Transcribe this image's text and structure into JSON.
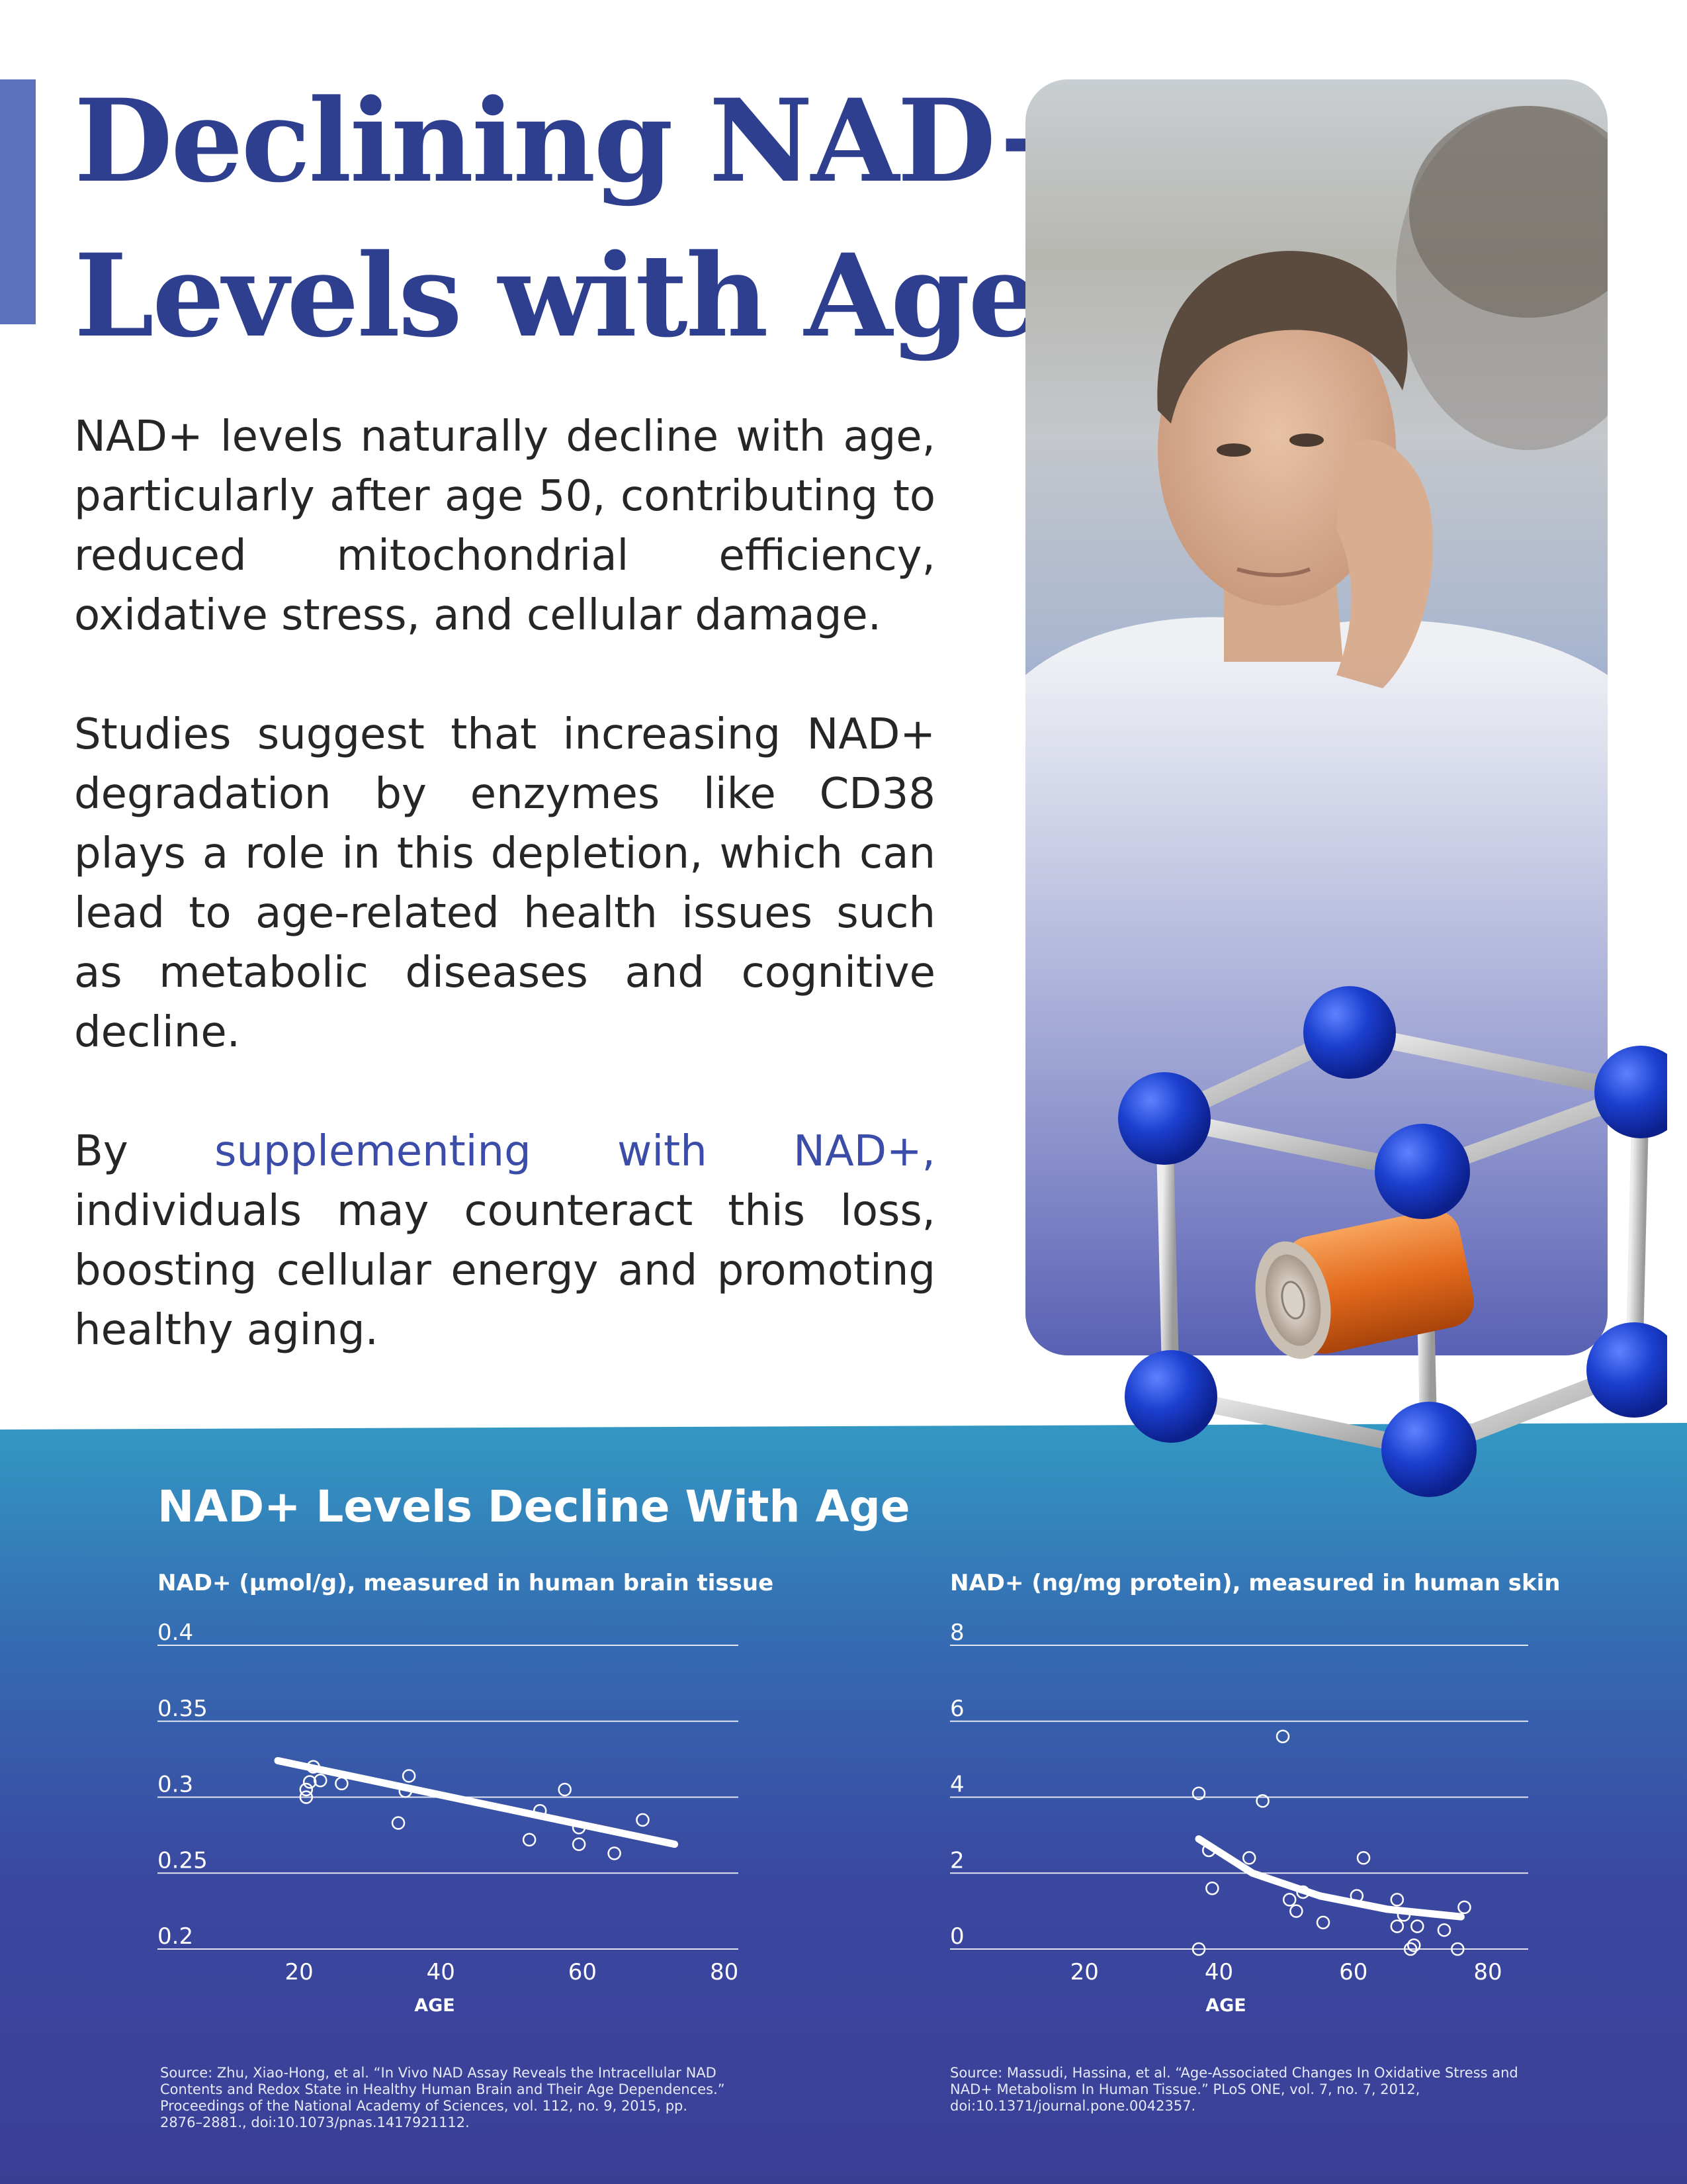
{
  "headline": {
    "line1": "Declining NAD+",
    "line2": "Levels with Age"
  },
  "body": {
    "para1": "NAD+ levels naturally decline with age, particularly after age 50, contributing to reduced mitochondrial efficiency, oxidative stress, and cellular damage.",
    "para2": "Studies suggest that increasing NAD+ degradation by enzymes like CD38 plays a role in this depletion, which can lead to age-related health issues such as metabolic diseases and cognitive decline.",
    "para3_highlight": "supplementing with NAD+,",
    "para3_pre": "By",
    "para3_post": "individuals may counteract this loss, boosting cellular energy and promoting healthy aging."
  },
  "colors": {
    "title": "#2e3f8f",
    "accent_bar": "#5c70bd",
    "highlight": "#3b4da8",
    "band_top": "#3398c4",
    "band_bottom": "#3a3f96",
    "molecule_atom": "#1b3fcf",
    "battery": "#e36a1c"
  },
  "illustration": {
    "photo": "man-looking-in-mirror-photo",
    "molecule": "molecule-cube-with-battery-icon"
  },
  "section_title": "NAD+ Levels Decline With Age",
  "chart_data": [
    {
      "type": "scatter",
      "subtitle": "NAD+ (µmol/g), measured in human brain tissue",
      "xlabel": "AGE",
      "ylabel": "",
      "xlim": [
        0,
        82
      ],
      "ylim": [
        0.2,
        0.4
      ],
      "xticks": [
        20,
        40,
        60,
        80
      ],
      "yticks": [
        0.4,
        0.35,
        0.3,
        0.25,
        0.2
      ],
      "ytick_labels": [
        "0.4",
        "0.35",
        "0.3",
        "0.25",
        "0.2"
      ],
      "xtick_labels": [
        "20",
        "40",
        "60",
        "80"
      ],
      "grid": true,
      "points": [
        {
          "x": 21,
          "y": 0.3
        },
        {
          "x": 21,
          "y": 0.305
        },
        {
          "x": 21.5,
          "y": 0.31
        },
        {
          "x": 22,
          "y": 0.32
        },
        {
          "x": 23,
          "y": 0.311
        },
        {
          "x": 26,
          "y": 0.309
        },
        {
          "x": 34,
          "y": 0.283
        },
        {
          "x": 35,
          "y": 0.304
        },
        {
          "x": 35.5,
          "y": 0.314
        },
        {
          "x": 52.5,
          "y": 0.272
        },
        {
          "x": 54,
          "y": 0.291
        },
        {
          "x": 57.5,
          "y": 0.305
        },
        {
          "x": 59.5,
          "y": 0.28
        },
        {
          "x": 59.5,
          "y": 0.269
        },
        {
          "x": 64.5,
          "y": 0.263
        },
        {
          "x": 68.5,
          "y": 0.285
        }
      ],
      "trend": [
        {
          "x": 17,
          "y": 0.324
        },
        {
          "x": 73,
          "y": 0.269
        }
      ],
      "source": "Source: Zhu, Xiao-Hong, et al. “In Vivo NAD Assay Reveals the Intracellular NAD Contents and Redox State in Healthy Human Brain and Their Age Dependences.” Proceedings of the National Academy of Sciences, vol. 112, no. 9, 2015, pp. 2876–2881., doi:10.1073/pnas.1417921112."
    },
    {
      "type": "scatter",
      "subtitle": "NAD+ (ng/mg protein), measured in human skin",
      "xlabel": "AGE",
      "ylabel": "",
      "xlim": [
        0,
        86
      ],
      "ylim": [
        0,
        8
      ],
      "xticks": [
        20,
        40,
        60,
        80
      ],
      "yticks": [
        8,
        6,
        4,
        2,
        0
      ],
      "ytick_labels": [
        "8",
        "6",
        "4",
        "2",
        "0"
      ],
      "xtick_labels": [
        "20",
        "40",
        "60",
        "80"
      ],
      "grid": true,
      "points": [
        {
          "x": 37,
          "y": 4.1
        },
        {
          "x": 37,
          "y": 0
        },
        {
          "x": 38.5,
          "y": 2.6
        },
        {
          "x": 39,
          "y": 1.6
        },
        {
          "x": 44.5,
          "y": 2.4
        },
        {
          "x": 46.5,
          "y": 3.9
        },
        {
          "x": 49.5,
          "y": 5.6
        },
        {
          "x": 50.5,
          "y": 1.3
        },
        {
          "x": 51.5,
          "y": 1.0
        },
        {
          "x": 52.5,
          "y": 1.5
        },
        {
          "x": 55.5,
          "y": 0.7
        },
        {
          "x": 60.5,
          "y": 1.4
        },
        {
          "x": 61.5,
          "y": 2.4
        },
        {
          "x": 66.5,
          "y": 1.3
        },
        {
          "x": 66.5,
          "y": 0.6
        },
        {
          "x": 67.5,
          "y": 0.9
        },
        {
          "x": 68.5,
          "y": 0
        },
        {
          "x": 69,
          "y": 0.1
        },
        {
          "x": 69.5,
          "y": 0.6
        },
        {
          "x": 73.5,
          "y": 0.5
        },
        {
          "x": 75.5,
          "y": 0
        },
        {
          "x": 76.5,
          "y": 1.1
        }
      ],
      "trend": [
        {
          "x": 37,
          "y": 2.9
        },
        {
          "x": 45,
          "y": 2.0
        },
        {
          "x": 55,
          "y": 1.4
        },
        {
          "x": 65,
          "y": 1.05
        },
        {
          "x": 76,
          "y": 0.85
        }
      ],
      "source": "Source: Massudi, Hassina, et al. “Age-Associated Changes In Oxidative Stress and NAD+ Metabolism In Human Tissue.” PLoS ONE, vol. 7, no. 7, 2012, doi:10.1371/journal.pone.0042357."
    }
  ]
}
